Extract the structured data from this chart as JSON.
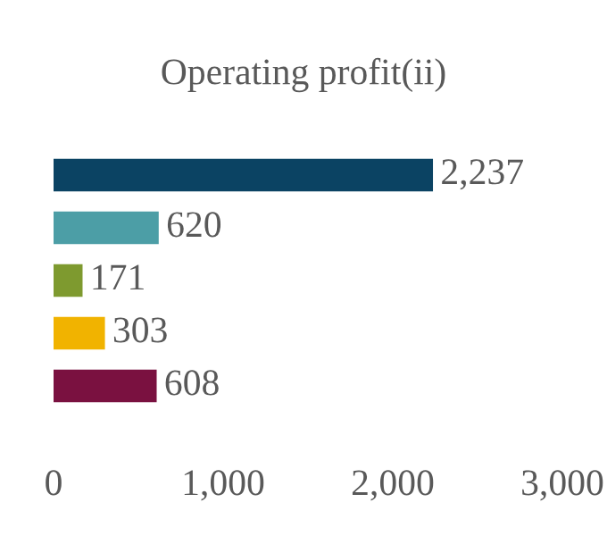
{
  "chart_data": {
    "type": "bar",
    "orientation": "horizontal",
    "title": "Operating profit(ii)",
    "categories": [
      null,
      null,
      null,
      null,
      null
    ],
    "values": [
      2237,
      620,
      171,
      303,
      608
    ],
    "colors": [
      "#0b4363",
      "#4c9ea6",
      "#7e9a2f",
      "#f1b300",
      "#7a1140"
    ],
    "value_labels": [
      "2,237",
      "620",
      "171",
      "303",
      "608"
    ],
    "xlim": [
      0,
      3000
    ],
    "xticks": [
      {
        "value": 0,
        "label": "0"
      },
      {
        "value": 1000,
        "label": "1,000"
      },
      {
        "value": 2000,
        "label": "2,000"
      },
      {
        "value": 3000,
        "label": "3,000"
      }
    ],
    "grid": false,
    "legend": false
  }
}
